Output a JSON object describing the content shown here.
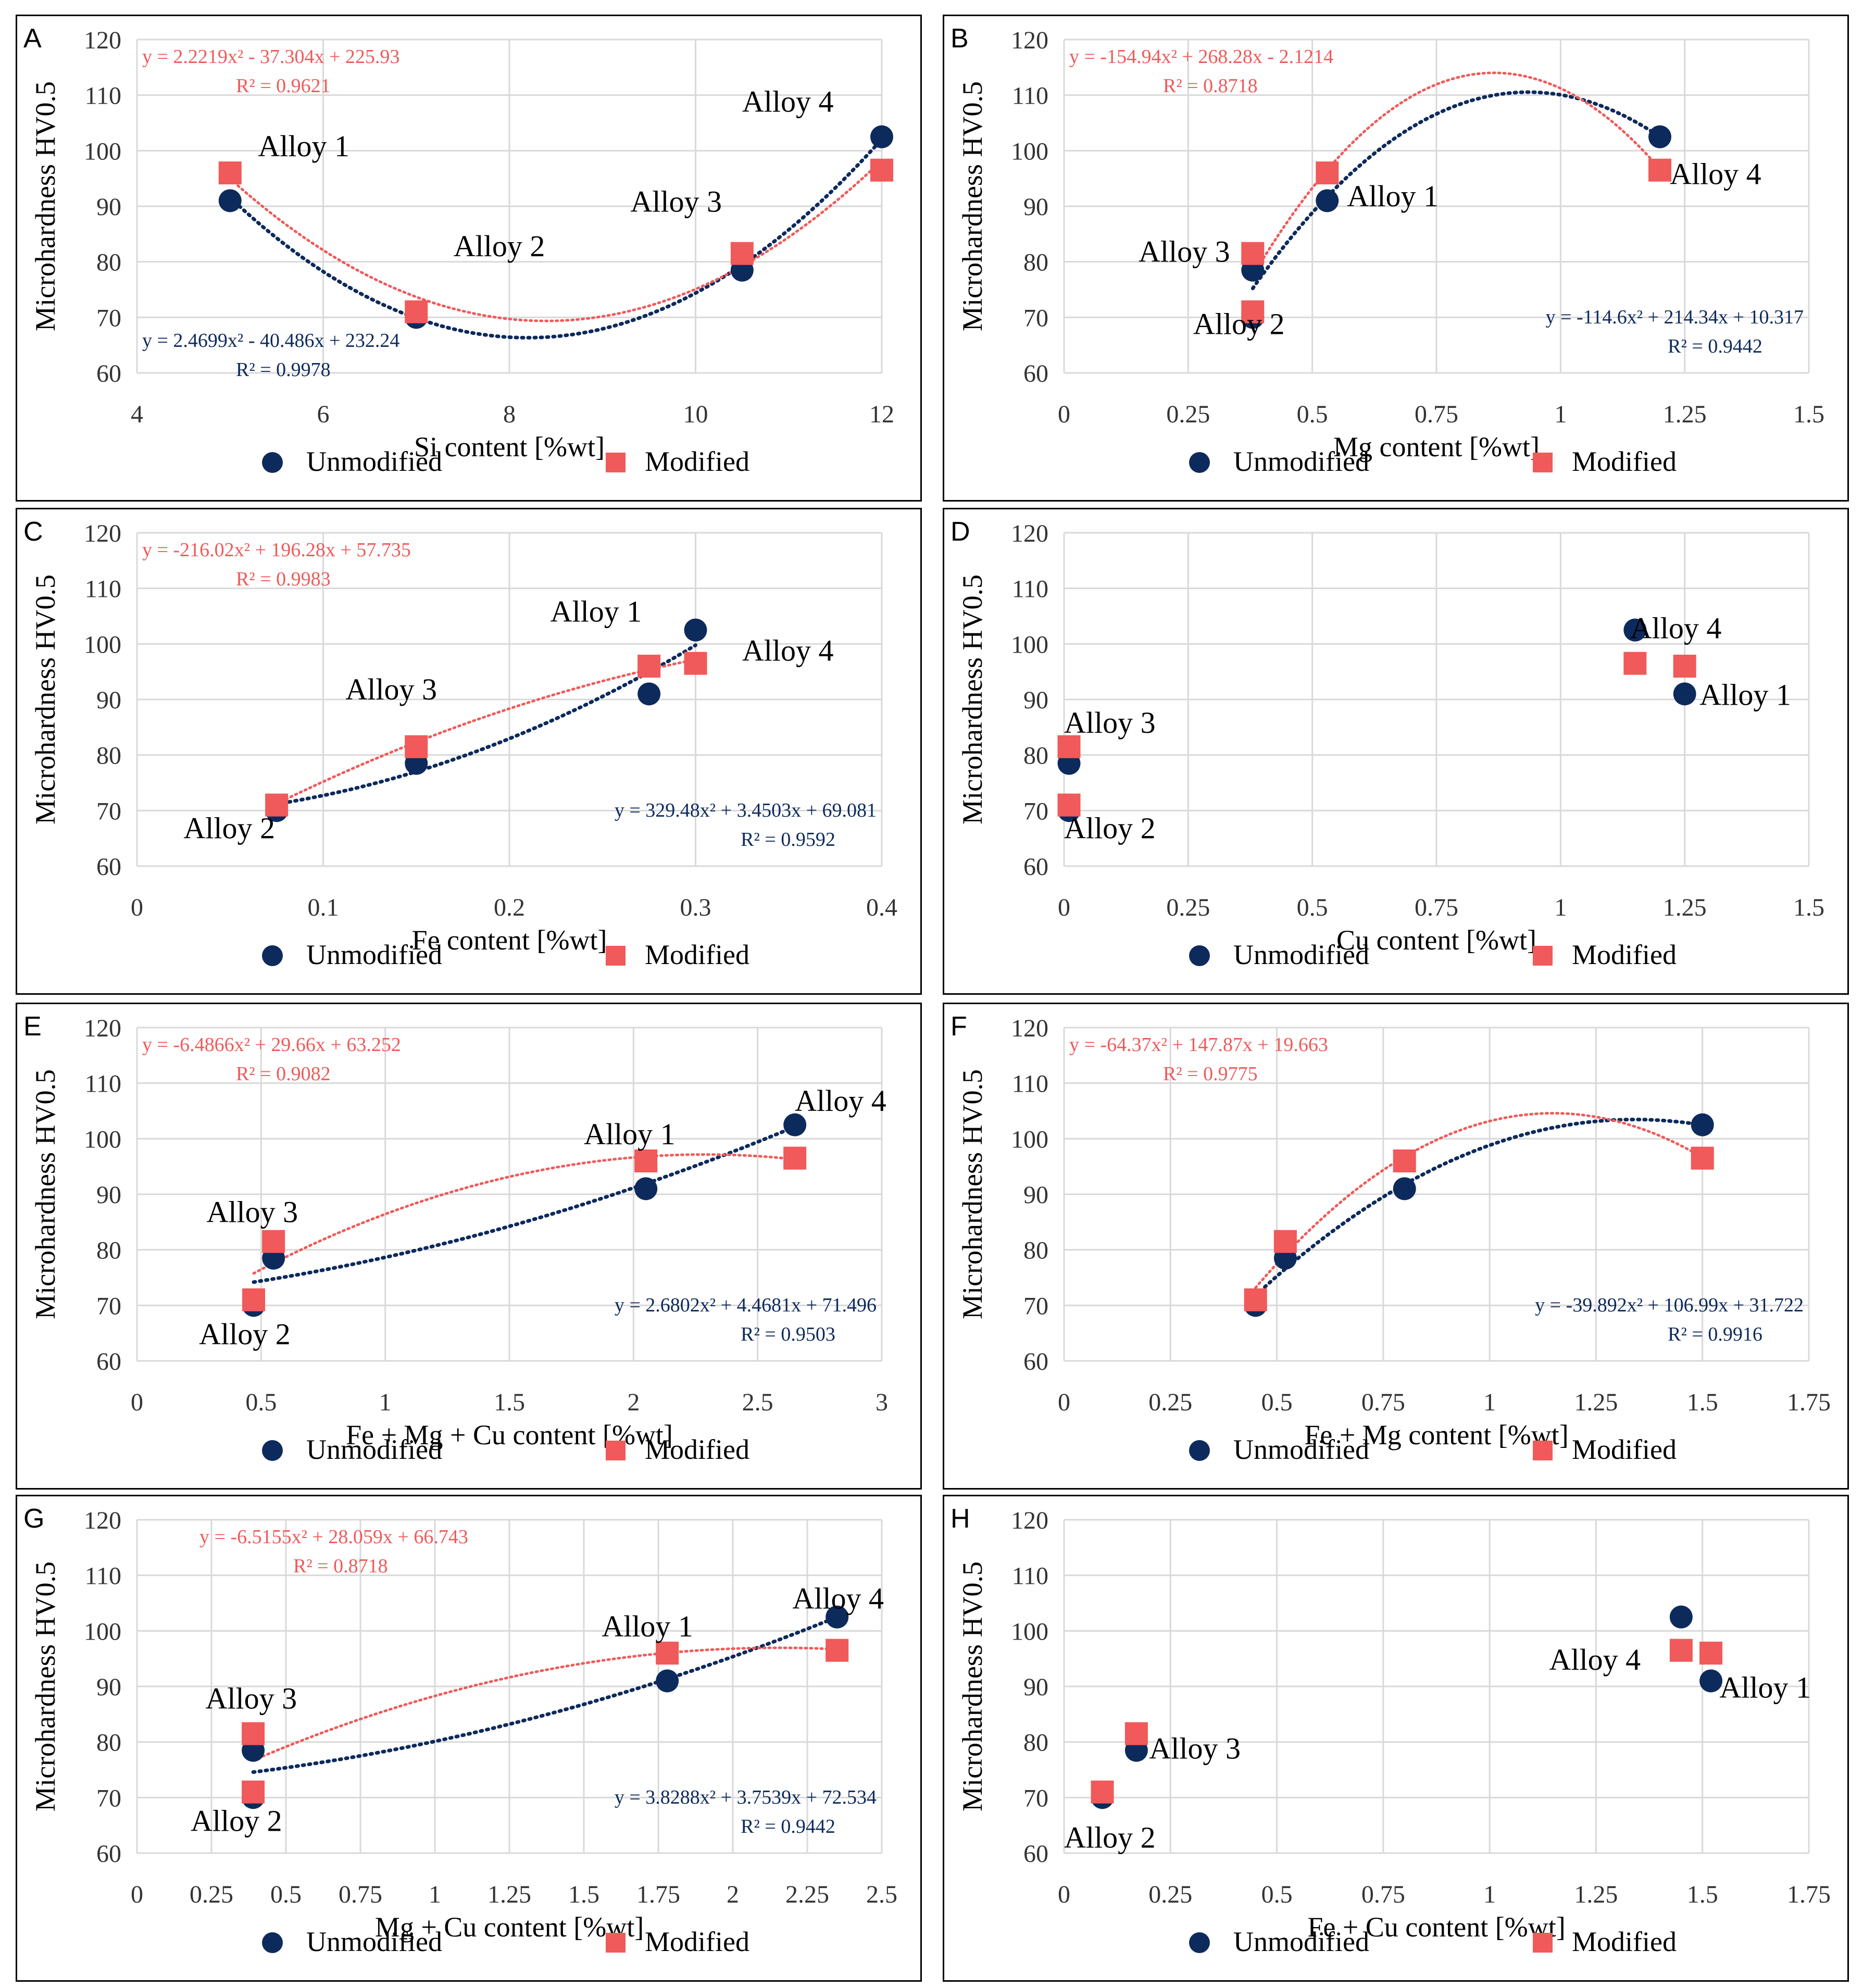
{
  "colors": {
    "unmodified": "#0d2a5c",
    "modified": "#f05a5a",
    "grid": "#d9d9d9",
    "axisText": "#333333"
  },
  "chart_data": [
    {
      "type": "scatter",
      "panel_label": "A",
      "xlabel": "Si content [%wt]",
      "ylabel": "Microhardness HV0.5",
      "xlim": [
        4,
        12
      ],
      "xticks": [
        4,
        6,
        8,
        10,
        12
      ],
      "xtick_labels": [
        "4",
        "6",
        "8",
        "10",
        "12"
      ],
      "ylim": [
        60,
        120
      ],
      "yticks": [
        60,
        70,
        80,
        90,
        100,
        110,
        120
      ],
      "series": [
        {
          "name": "Unmodified",
          "x": [
            5,
            7,
            10.5,
            12
          ],
          "y": [
            91,
            70,
            78.5,
            102.5
          ],
          "fit": [
            2.4699,
            -40.486,
            232.24
          ],
          "fit_range": [
            5,
            12
          ],
          "eq": "y = 2.4699x² - 40.486x + 232.24",
          "r2": "R² = 0.9978"
        },
        {
          "name": "Modified",
          "x": [
            5,
            7,
            10.5,
            12
          ],
          "y": [
            96,
            71,
            81.5,
            96.5
          ],
          "fit": [
            2.2219,
            -37.304,
            225.93
          ],
          "fit_range": [
            5,
            12
          ],
          "eq": "y = 2.2219x² - 37.304x + 225.93",
          "r2": "R² = 0.9621"
        }
      ],
      "point_labels": [
        {
          "text": "Alloy 1",
          "x": 5.3,
          "y": 99
        },
        {
          "text": "Alloy 2",
          "x": 7.4,
          "y": 81
        },
        {
          "text": "Alloy 3",
          "x": 9.3,
          "y": 89
        },
        {
          "text": "Alloy 4",
          "x": 10.5,
          "y": 107
        }
      ],
      "legend": [
        "Unmodified",
        "Modified"
      ],
      "legend_position": "bottom"
    },
    {
      "type": "scatter",
      "panel_label": "B",
      "xlabel": "Mg content [%wt]",
      "ylabel": "Microhardness HV0.5",
      "xlim": [
        0,
        1.5
      ],
      "xticks": [
        0,
        0.25,
        0.5,
        0.75,
        1,
        1.25,
        1.5
      ],
      "xtick_labels": [
        "0",
        "0.25",
        "0.5",
        "0.75",
        "1",
        "1.25",
        "1.5"
      ],
      "ylim": [
        60,
        120
      ],
      "yticks": [
        60,
        70,
        80,
        90,
        100,
        110,
        120
      ],
      "series": [
        {
          "name": "Unmodified",
          "x": [
            0.53,
            0.38,
            0.38,
            1.2
          ],
          "y": [
            91,
            70,
            78.5,
            102.5
          ],
          "fit": [
            -114.6,
            214.34,
            10.317
          ],
          "fit_range": [
            0.38,
            1.2
          ],
          "eq": "y = -114.6x² + 214.34x + 10.317",
          "r2": "R² = 0.9442"
        },
        {
          "name": "Modified",
          "x": [
            0.53,
            0.38,
            0.38,
            1.2
          ],
          "y": [
            96,
            71,
            81.5,
            96.5
          ],
          "fit": [
            -154.94,
            268.28,
            -2.1214
          ],
          "fit_range": [
            0.38,
            1.2
          ],
          "eq": "y = -154.94x² + 268.28x - 2.1214",
          "r2": "R² = 0.8718"
        }
      ],
      "point_labels": [
        {
          "text": "Alloy 1",
          "x": 0.57,
          "y": 90
        },
        {
          "text": "Alloy 2",
          "x": 0.26,
          "y": 67
        },
        {
          "text": "Alloy 3",
          "x": 0.15,
          "y": 80
        },
        {
          "text": "Alloy 4",
          "x": 1.22,
          "y": 94
        }
      ],
      "legend": [
        "Unmodified",
        "Modified"
      ],
      "legend_position": "bottom"
    },
    {
      "type": "scatter",
      "panel_label": "C",
      "xlabel": "Fe content [%wt]",
      "ylabel": "Microhardness HV0.5",
      "xlim": [
        0,
        0.4
      ],
      "xticks": [
        0,
        0.1,
        0.2,
        0.3,
        0.4
      ],
      "xtick_labels": [
        "0",
        "0.1",
        "0.2",
        "0.3",
        "0.4"
      ],
      "ylim": [
        60,
        120
      ],
      "yticks": [
        60,
        70,
        80,
        90,
        100,
        110,
        120
      ],
      "series": [
        {
          "name": "Unmodified",
          "x": [
            0.275,
            0.075,
            0.15,
            0.3
          ],
          "y": [
            91,
            70,
            78.5,
            102.5
          ],
          "fit": [
            329.48,
            3.4503,
            69.081
          ],
          "fit_range": [
            0.075,
            0.3
          ],
          "eq": "y = 329.48x² + 3.4503x + 69.081",
          "r2": "R² = 0.9592"
        },
        {
          "name": "Modified",
          "x": [
            0.275,
            0.075,
            0.15,
            0.3
          ],
          "y": [
            96,
            71,
            81.5,
            96.5
          ],
          "fit": [
            -216.02,
            196.28,
            57.735
          ],
          "fit_range": [
            0.075,
            0.3
          ],
          "eq": "y = -216.02x² + 196.28x + 57.735",
          "r2": "R² = 0.9983"
        }
      ],
      "point_labels": [
        {
          "text": "Alloy 1",
          "x": 0.222,
          "y": 104
        },
        {
          "text": "Alloy 2",
          "x": 0.025,
          "y": 65
        },
        {
          "text": "Alloy 3",
          "x": 0.112,
          "y": 90
        },
        {
          "text": "Alloy 4",
          "x": 0.325,
          "y": 97
        }
      ],
      "legend": [
        "Unmodified",
        "Modified"
      ],
      "legend_position": "bottom"
    },
    {
      "type": "scatter",
      "panel_label": "D",
      "xlabel": "Cu content [%wt]",
      "ylabel": "Microhardness HV0.5",
      "xlim": [
        0,
        1.5
      ],
      "xticks": [
        0,
        0.25,
        0.5,
        0.75,
        1,
        1.25,
        1.5
      ],
      "xtick_labels": [
        "0",
        "0.25",
        "0.5",
        "0.75",
        "1",
        "1.25",
        "1.5"
      ],
      "ylim": [
        60,
        120
      ],
      "yticks": [
        60,
        70,
        80,
        90,
        100,
        110,
        120
      ],
      "series": [
        {
          "name": "Unmodified",
          "x": [
            1.25,
            0.01,
            0.01,
            1.15
          ],
          "y": [
            91,
            70,
            78.5,
            102.5
          ]
        },
        {
          "name": "Modified",
          "x": [
            1.25,
            0.01,
            0.01,
            1.15
          ],
          "y": [
            96,
            71,
            81.5,
            96.5
          ]
        }
      ],
      "point_labels": [
        {
          "text": "Alloy 1",
          "x": 1.28,
          "y": 89
        },
        {
          "text": "Alloy 2",
          "x": 0,
          "y": 65
        },
        {
          "text": "Alloy 3",
          "x": 0,
          "y": 84
        },
        {
          "text": "Alloy 4",
          "x": 1.14,
          "y": 101
        }
      ],
      "legend": [
        "Unmodified",
        "Modified"
      ],
      "legend_position": "bottom"
    },
    {
      "type": "scatter",
      "panel_label": "E",
      "xlabel": "Fe + Mg + Cu content [%wt]",
      "ylabel": "Microhardness HV0.5",
      "xlim": [
        0,
        3
      ],
      "xticks": [
        0,
        0.5,
        1,
        1.5,
        2,
        2.5,
        3
      ],
      "xtick_labels": [
        "0",
        "0.5",
        "1",
        "1.5",
        "2",
        "2.5",
        "3"
      ],
      "ylim": [
        60,
        120
      ],
      "yticks": [
        60,
        70,
        80,
        90,
        100,
        110,
        120
      ],
      "series": [
        {
          "name": "Unmodified",
          "x": [
            2.05,
            0.47,
            0.55,
            2.65
          ],
          "y": [
            91,
            70,
            78.5,
            102.5
          ],
          "fit": [
            2.6802,
            4.4681,
            71.496
          ],
          "fit_range": [
            0.47,
            2.65
          ],
          "eq": "y = 2.6802x² + 4.4681x + 71.496",
          "r2": "R² = 0.9503"
        },
        {
          "name": "Modified",
          "x": [
            2.05,
            0.47,
            0.55,
            2.65
          ],
          "y": [
            96,
            71,
            81.5,
            96.5
          ],
          "fit": [
            -6.4866,
            29.66,
            63.252
          ],
          "fit_range": [
            0.47,
            2.65
          ],
          "eq": "y = -6.4866x² + 29.66x + 63.252",
          "r2": "R² = 0.9082"
        }
      ],
      "point_labels": [
        {
          "text": "Alloy 1",
          "x": 1.8,
          "y": 99
        },
        {
          "text": "Alloy 2",
          "x": 0.25,
          "y": 63
        },
        {
          "text": "Alloy 3",
          "x": 0.28,
          "y": 85
        },
        {
          "text": "Alloy 4",
          "x": 2.65,
          "y": 105
        }
      ],
      "legend": [
        "Unmodified",
        "Modified"
      ],
      "legend_position": "bottom"
    },
    {
      "type": "scatter",
      "panel_label": "F",
      "xlabel": "Fe + Mg content [%wt]",
      "ylabel": "Microhardness HV0.5",
      "xlim": [
        0,
        1.75
      ],
      "xticks": [
        0,
        0.25,
        0.5,
        0.75,
        1,
        1.25,
        1.5,
        1.75
      ],
      "xtick_labels": [
        "0",
        "0.25",
        "0.5",
        "0.75",
        "1",
        "1.25",
        "1.5",
        "1.75"
      ],
      "ylim": [
        60,
        120
      ],
      "yticks": [
        60,
        70,
        80,
        90,
        100,
        110,
        120
      ],
      "series": [
        {
          "name": "Unmodified",
          "x": [
            0.8,
            0.45,
            0.52,
            1.5
          ],
          "y": [
            91,
            70,
            78.5,
            102.5
          ],
          "fit": [
            -39.892,
            106.99,
            31.722
          ],
          "fit_range": [
            0.45,
            1.5
          ],
          "eq": "y = -39.892x² + 106.99x + 31.722",
          "r2": "R² = 0.9916"
        },
        {
          "name": "Modified",
          "x": [
            0.8,
            0.45,
            0.52,
            1.5
          ],
          "y": [
            96,
            71,
            81.5,
            96.5
          ],
          "fit": [
            -64.37,
            147.87,
            19.663
          ],
          "fit_range": [
            0.45,
            1.5
          ],
          "eq": "y = -64.37x² + 147.87x + 19.663",
          "r2": "R² = 0.9775"
        }
      ],
      "point_labels": [],
      "legend": [
        "Unmodified",
        "Modified"
      ],
      "legend_position": "bottom"
    },
    {
      "type": "scatter",
      "panel_label": "G",
      "xlabel": "Mg + Cu content [%wt]",
      "ylabel": "Microhardness HV0.5",
      "xlim": [
        0,
        2.5
      ],
      "xticks": [
        0,
        0.25,
        0.5,
        0.75,
        1,
        1.25,
        1.5,
        1.75,
        2,
        2.25,
        2.5
      ],
      "xtick_labels": [
        "0",
        "0.25",
        "0.5",
        "0.75",
        "1",
        "1.25",
        "1.5",
        "1.75",
        "2",
        "2.25",
        "2.5"
      ],
      "ylim": [
        60,
        120
      ],
      "yticks": [
        60,
        70,
        80,
        90,
        100,
        110,
        120
      ],
      "series": [
        {
          "name": "Unmodified",
          "x": [
            1.78,
            0.39,
            0.39,
            2.35
          ],
          "y": [
            91,
            70,
            78.5,
            102.5
          ],
          "fit": [
            3.8288,
            3.7539,
            72.534
          ],
          "fit_range": [
            0.39,
            2.35
          ],
          "eq": "y = 3.8288x² + 3.7539x + 72.534",
          "r2": "R² = 0.9442"
        },
        {
          "name": "Modified",
          "x": [
            1.78,
            0.39,
            0.39,
            2.35
          ],
          "y": [
            96,
            71,
            81.5,
            96.5
          ],
          "fit": [
            -6.5155,
            28.059,
            66.743
          ],
          "fit_range": [
            0.39,
            2.35
          ],
          "eq": "y = -6.5155x² + 28.059x + 66.743",
          "r2": "R² = 0.8718"
        }
      ],
      "point_labels": [
        {
          "text": "Alloy 1",
          "x": 1.56,
          "y": 99
        },
        {
          "text": "Alloy 2",
          "x": 0.18,
          "y": 64
        },
        {
          "text": "Alloy 3",
          "x": 0.23,
          "y": 86
        },
        {
          "text": "Alloy 4",
          "x": 2.2,
          "y": 104
        }
      ],
      "legend": [
        "Unmodified",
        "Modified"
      ],
      "legend_position": "bottom"
    },
    {
      "type": "scatter",
      "panel_label": "H",
      "xlabel": "Fe + Cu content [%wt]",
      "ylabel": "Microhardness HV0.5",
      "xlim": [
        0,
        1.75
      ],
      "xticks": [
        0,
        0.25,
        0.5,
        0.75,
        1,
        1.25,
        1.5,
        1.75
      ],
      "xtick_labels": [
        "0",
        "0.25",
        "0.5",
        "0.75",
        "1",
        "1.25",
        "1.5",
        "1.75"
      ],
      "ylim": [
        60,
        120
      ],
      "yticks": [
        60,
        70,
        80,
        90,
        100,
        110,
        120
      ],
      "series": [
        {
          "name": "Unmodified",
          "x": [
            1.52,
            0.09,
            0.17,
            1.45
          ],
          "y": [
            91,
            70,
            78.5,
            102.5
          ]
        },
        {
          "name": "Modified",
          "x": [
            1.52,
            0.09,
            0.17,
            1.45
          ],
          "y": [
            96,
            71,
            81.5,
            96.5
          ]
        }
      ],
      "point_labels": [
        {
          "text": "Alloy 1",
          "x": 1.54,
          "y": 88
        },
        {
          "text": "Alloy 2",
          "x": 0,
          "y": 61
        },
        {
          "text": "Alloy 3",
          "x": 0.2,
          "y": 77
        },
        {
          "text": "Alloy 4",
          "x": 1.14,
          "y": 93
        }
      ],
      "legend": [
        "Unmodified",
        "Modified"
      ],
      "legend_position": "bottom"
    }
  ]
}
